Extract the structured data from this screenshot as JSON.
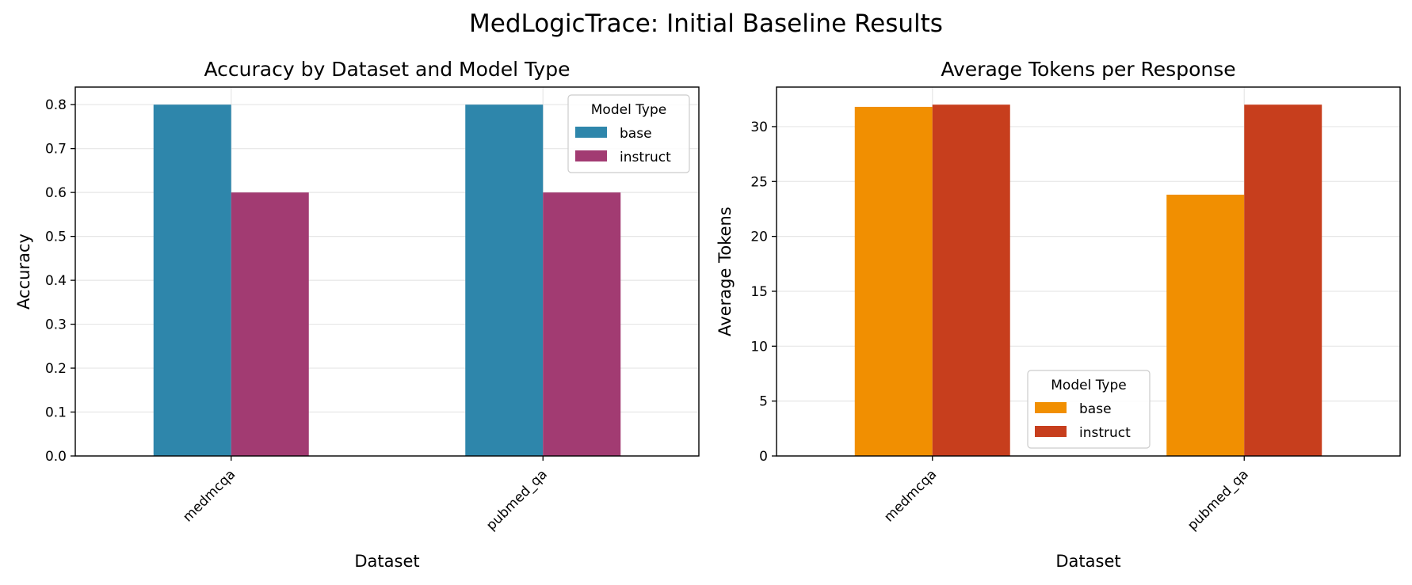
{
  "figure": {
    "title": "MedLogicTrace: Initial Baseline Results"
  },
  "chart_data": [
    {
      "type": "bar",
      "title": "Accuracy by Dataset and Model Type",
      "xlabel": "Dataset",
      "ylabel": "Accuracy",
      "categories": [
        "medmcqa",
        "pubmed_qa"
      ],
      "series": [
        {
          "name": "base",
          "values": [
            0.8,
            0.8
          ],
          "color": "#2e86ab"
        },
        {
          "name": "instruct",
          "values": [
            0.6,
            0.6
          ],
          "color": "#a23b72"
        }
      ],
      "ylim": [
        0,
        0.84
      ],
      "yticks": [
        0.0,
        0.1,
        0.2,
        0.3,
        0.4,
        0.5,
        0.6,
        0.7,
        0.8
      ],
      "ytick_labels": [
        "0.0",
        "0.1",
        "0.2",
        "0.3",
        "0.4",
        "0.5",
        "0.6",
        "0.7",
        "0.8"
      ],
      "grid": true,
      "legend": {
        "title": "Model Type",
        "placement": "upper right"
      }
    },
    {
      "type": "bar",
      "title": "Average Tokens per Response",
      "xlabel": "Dataset",
      "ylabel": "Average Tokens",
      "categories": [
        "medmcqa",
        "pubmed_qa"
      ],
      "series": [
        {
          "name": "base",
          "values": [
            31.8,
            23.8
          ],
          "color": "#f18f01"
        },
        {
          "name": "instruct",
          "values": [
            32.0,
            32.0
          ],
          "color": "#c73e1d"
        }
      ],
      "ylim": [
        0,
        33.6
      ],
      "yticks": [
        0,
        5,
        10,
        15,
        20,
        25,
        30
      ],
      "ytick_labels": [
        "0",
        "5",
        "10",
        "15",
        "20",
        "25",
        "30"
      ],
      "grid": true,
      "legend": {
        "title": "Model Type",
        "placement": "lower center"
      }
    }
  ]
}
